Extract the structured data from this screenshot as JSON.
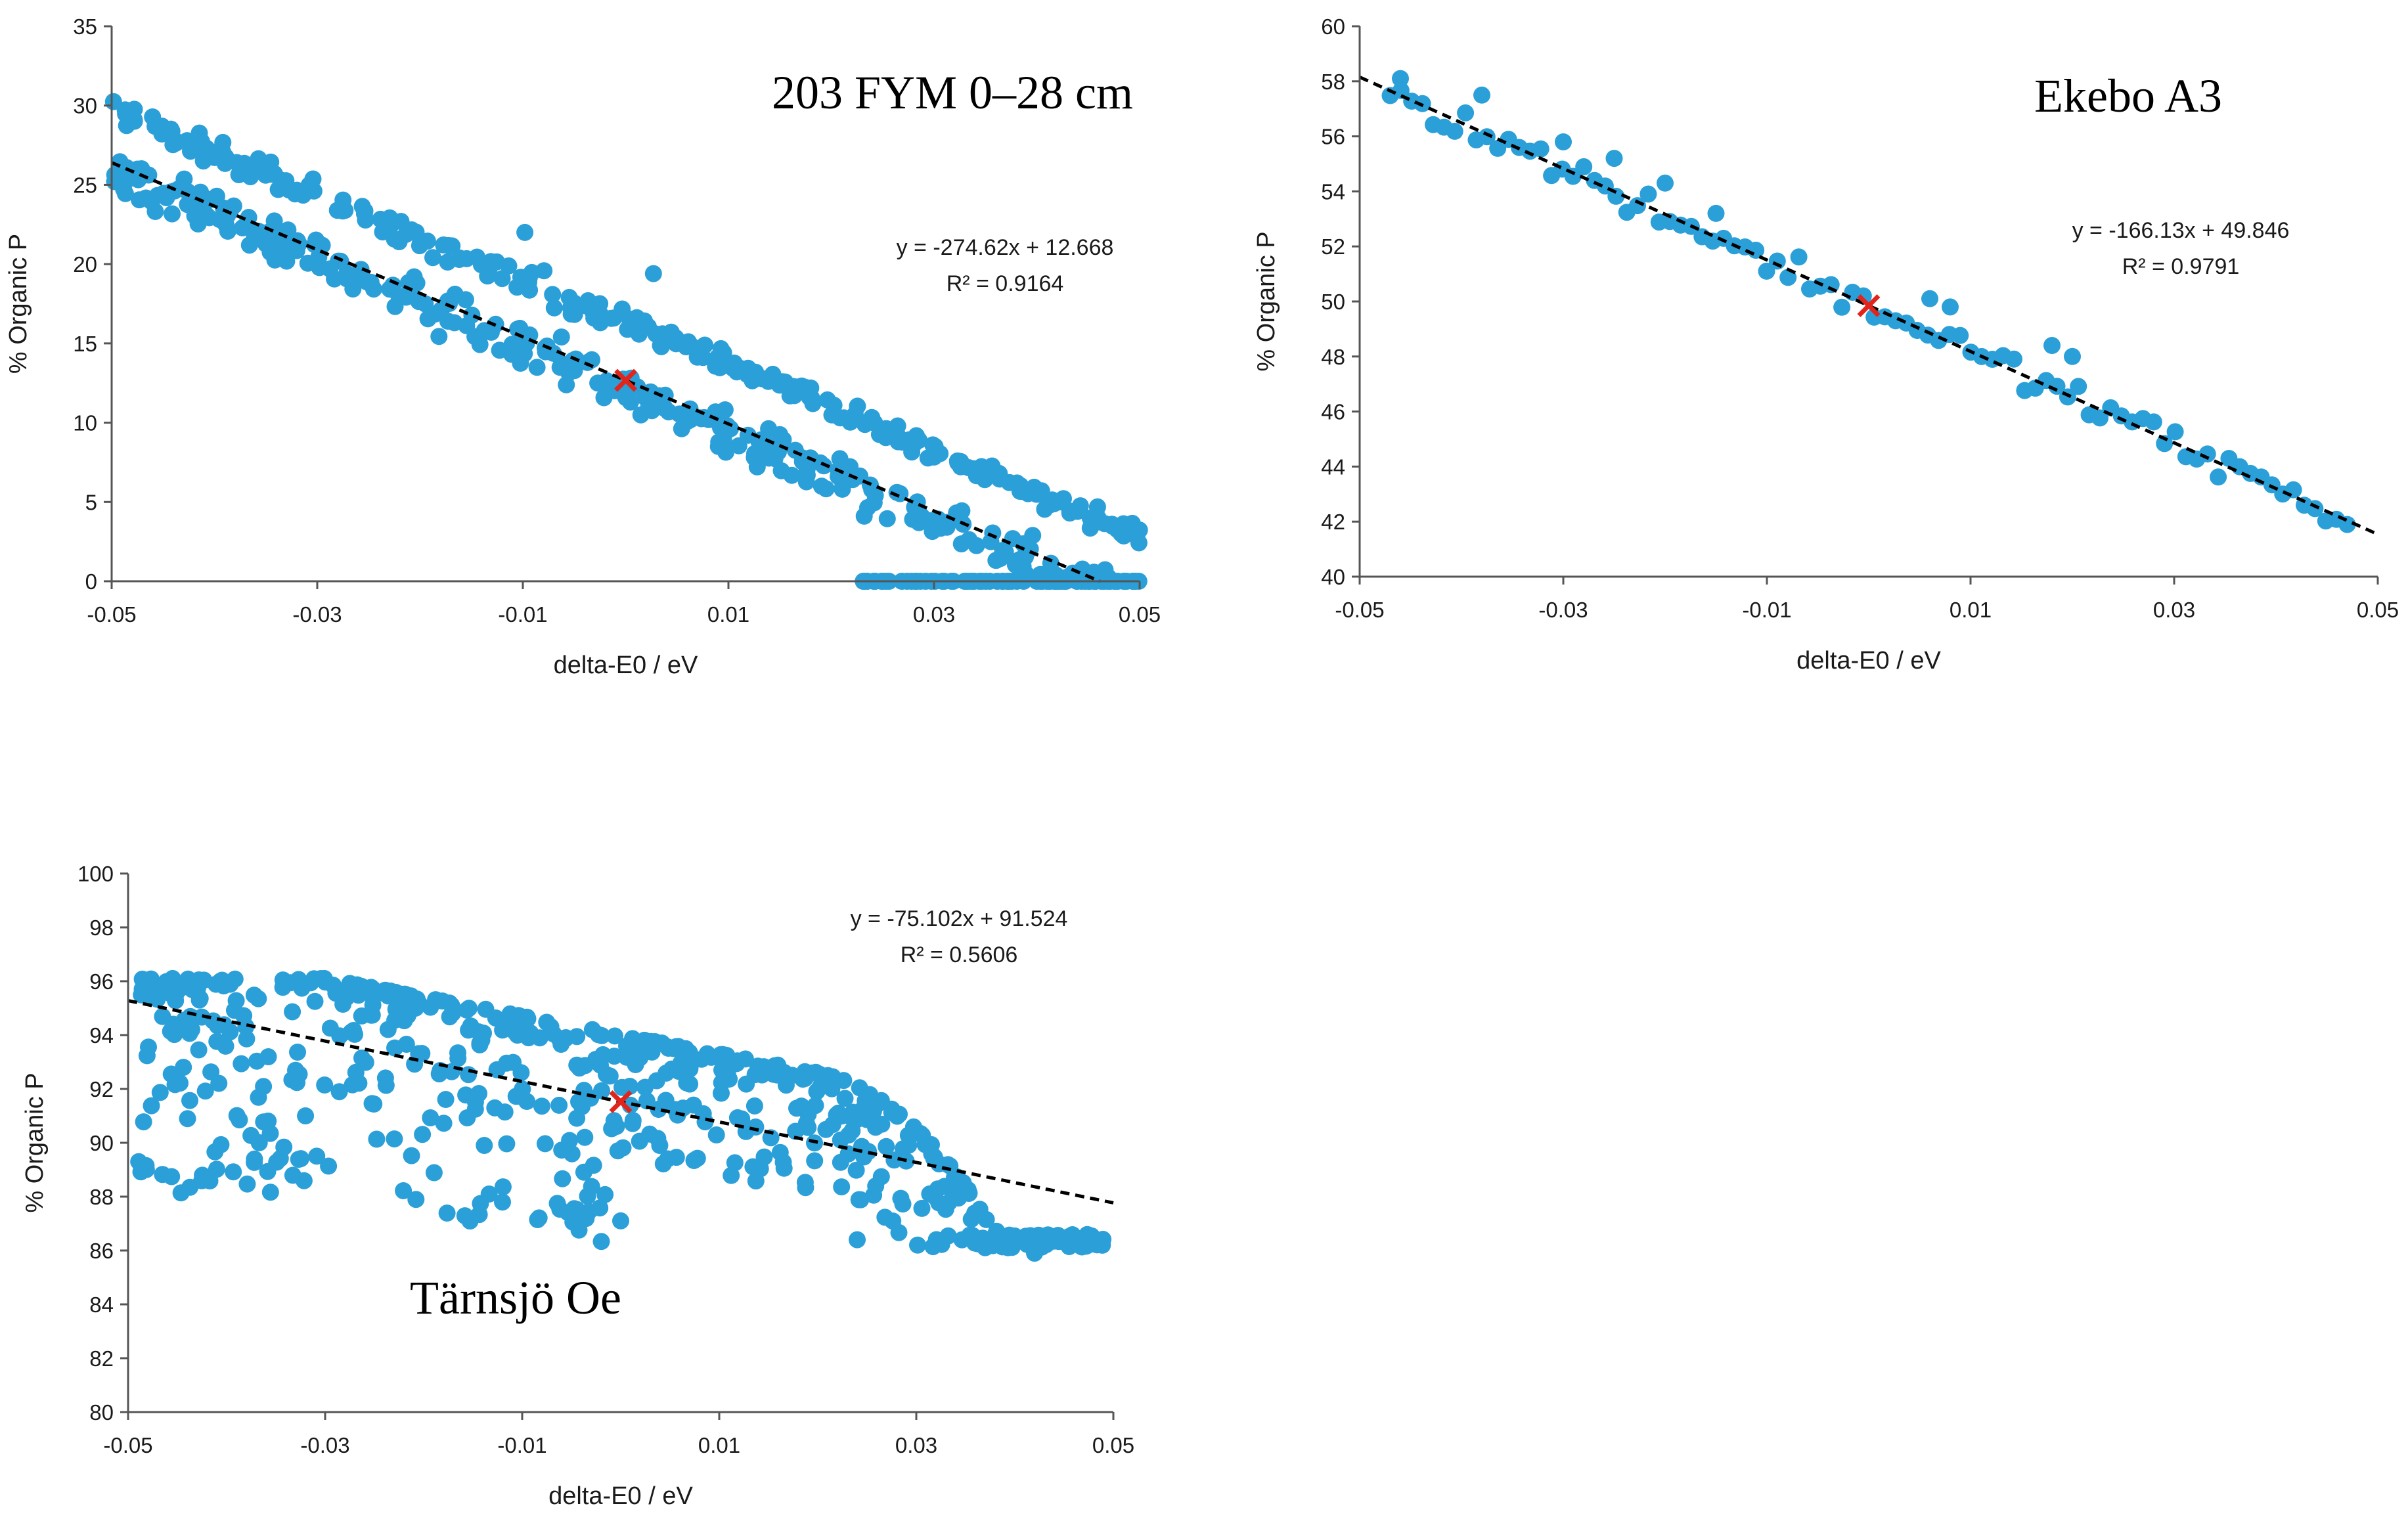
{
  "colors": {
    "points": "#2b9fd8",
    "trend": "#000000",
    "marker": "#e0261c",
    "axis": "#555555"
  },
  "chart_data": [
    {
      "type": "scatter",
      "title": "203 FYM 0–28 cm",
      "xlabel": "delta-E0 / eV",
      "ylabel": "% Organic P",
      "xlim": [
        -0.05,
        0.05
      ],
      "ylim": [
        0,
        35
      ],
      "xticks": [
        "-0.05",
        "-0.03",
        "-0.01",
        "0.01",
        "0.03",
        "0.05"
      ],
      "yticks": [
        "0",
        "5",
        "10",
        "15",
        "20",
        "25",
        "30",
        "35"
      ],
      "trendline": {
        "slope": -274.62,
        "intercept": 12.668,
        "style": "dashed"
      },
      "equation": "y = -274.62x + 12.668",
      "r2": "R² = 0.9164",
      "marker": {
        "x": 0,
        "y": 12.668,
        "shape": "cross"
      },
      "legend_position": "none",
      "title_position": "top-right",
      "series": [
        {
          "name": "points",
          "pattern": "two-bands",
          "count": 600,
          "spread": 1.6,
          "outliers": [
            [
              -0.048,
              29.7
            ],
            [
              -0.0098,
              22.0
            ],
            [
              0.0027,
              19.4
            ]
          ]
        }
      ]
    },
    {
      "type": "scatter",
      "title": "Ekebo A3",
      "xlabel": "delta-E0 / eV",
      "ylabel": "% Organic P",
      "xlim": [
        -0.05,
        0.05
      ],
      "ylim": [
        40,
        60
      ],
      "xticks": [
        "-0.05",
        "-0.03",
        "-0.01",
        "0.01",
        "0.03",
        "0.05"
      ],
      "yticks": [
        "40",
        "42",
        "44",
        "46",
        "48",
        "50",
        "52",
        "54",
        "56",
        "58",
        "60"
      ],
      "trendline": {
        "slope": -166.13,
        "intercept": 49.846,
        "style": "dashed"
      },
      "equation": "y = -166.13x + 49.846",
      "r2": "R² = 0.9791",
      "marker": {
        "x": 0,
        "y": 49.846,
        "shape": "cross"
      },
      "legend_position": "none",
      "title_position": "top-right",
      "series": [
        {
          "name": "points",
          "pattern": "linear",
          "count": 90,
          "spread": 0.55,
          "outliers": [
            [
              -0.046,
              58.1
            ],
            [
              -0.038,
              57.5
            ],
            [
              -0.03,
              55.8
            ],
            [
              -0.025,
              55.2
            ],
            [
              -0.02,
              54.3
            ],
            [
              -0.015,
              53.2
            ],
            [
              0.018,
              48.4
            ],
            [
              0.02,
              48.0
            ],
            [
              0.006,
              50.1
            ],
            [
              0.008,
              49.8
            ]
          ]
        }
      ]
    },
    {
      "type": "scatter",
      "title": "Tärnsjö Oe",
      "xlabel": "delta-E0 / eV",
      "ylabel": "% Organic P",
      "xlim": [
        -0.05,
        0.05
      ],
      "ylim": [
        80,
        100
      ],
      "xticks": [
        "-0.05",
        "-0.03",
        "-0.01",
        "0.01",
        "0.03",
        "0.05"
      ],
      "yticks": [
        "80",
        "82",
        "84",
        "86",
        "88",
        "90",
        "92",
        "94",
        "96",
        "98",
        "100"
      ],
      "trendline": {
        "slope": -75.102,
        "intercept": 91.524,
        "style": "dashed"
      },
      "equation": "y = -75.102x + 91.524",
      "r2": "R² = 0.5606",
      "marker": {
        "x": 0,
        "y": 91.524,
        "shape": "cross"
      },
      "legend_position": "none",
      "title_position": "bottom-left",
      "series": [
        {
          "name": "points",
          "pattern": "upper-envelope",
          "count": 650,
          "spread": 4.5,
          "outliers": [
            [
              0.024,
              86.4
            ],
            [
              0.042,
              85.9
            ],
            [
              -0.012,
              87.8
            ],
            [
              0.0,
              87.1
            ]
          ]
        }
      ]
    }
  ]
}
